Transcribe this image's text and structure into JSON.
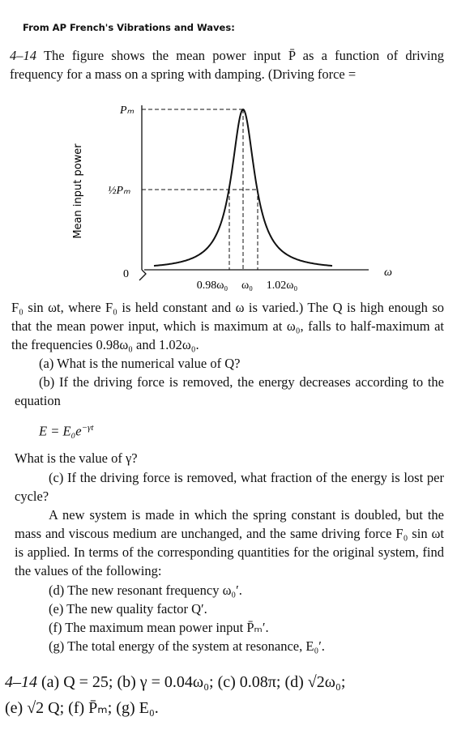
{
  "header": "From AP French's Vibrations and Waves:",
  "problem": {
    "number": "4–14",
    "intro": "The figure shows the mean power input P̄ as a function of driving frequency for a mass on a spring with damping. (Driving force =",
    "figure": {
      "y_label": "Mean input power",
      "y_ticks": [
        "Pₘ",
        "½Pₘ",
        "0"
      ],
      "x_ticks": [
        "0.98ω₀",
        "ω₀",
        "1.02ω₀"
      ],
      "x_axis": "ω"
    },
    "continuation": "F₀ sin ωt, where F₀ is held constant and ω is varied.) The Q is high enough so that the mean power input, which is maximum at ω₀, falls to half-maximum at the frequencies 0.98ω₀ and 1.02ω₀.",
    "part_a": "(a) What is the numerical value of Q?",
    "part_b": "(b) If the driving force is removed, the energy decreases according to the equation",
    "equation": {
      "base": "E = E₀e",
      "exponent": "−γt"
    },
    "question_gamma": "What is the value of γ?",
    "part_c": "(c) If the driving force is removed, what fraction of the energy is lost per cycle?",
    "new_system": "A new system is made in which the spring constant is doubled, but the mass and viscous medium are unchanged, and the same driving force F₀ sin ωt is applied. In terms of the corresponding quantities for the original system, find the values of the following:",
    "part_d": "(d) The new resonant frequency ω₀′.",
    "part_e": "(e) The new quality factor Q′.",
    "part_f": "(f) The maximum mean power input P̄ₘ′.",
    "part_g": "(g) The total energy of the system at resonance, E₀′."
  },
  "answer": {
    "number": "4–14",
    "line1": "(a) Q = 25; (b) γ = 0.04ω₀; (c) 0.08π; (d) √2ω₀;",
    "line2": "(e) √2 Q; (f) P̄ₘ; (g) E₀."
  }
}
